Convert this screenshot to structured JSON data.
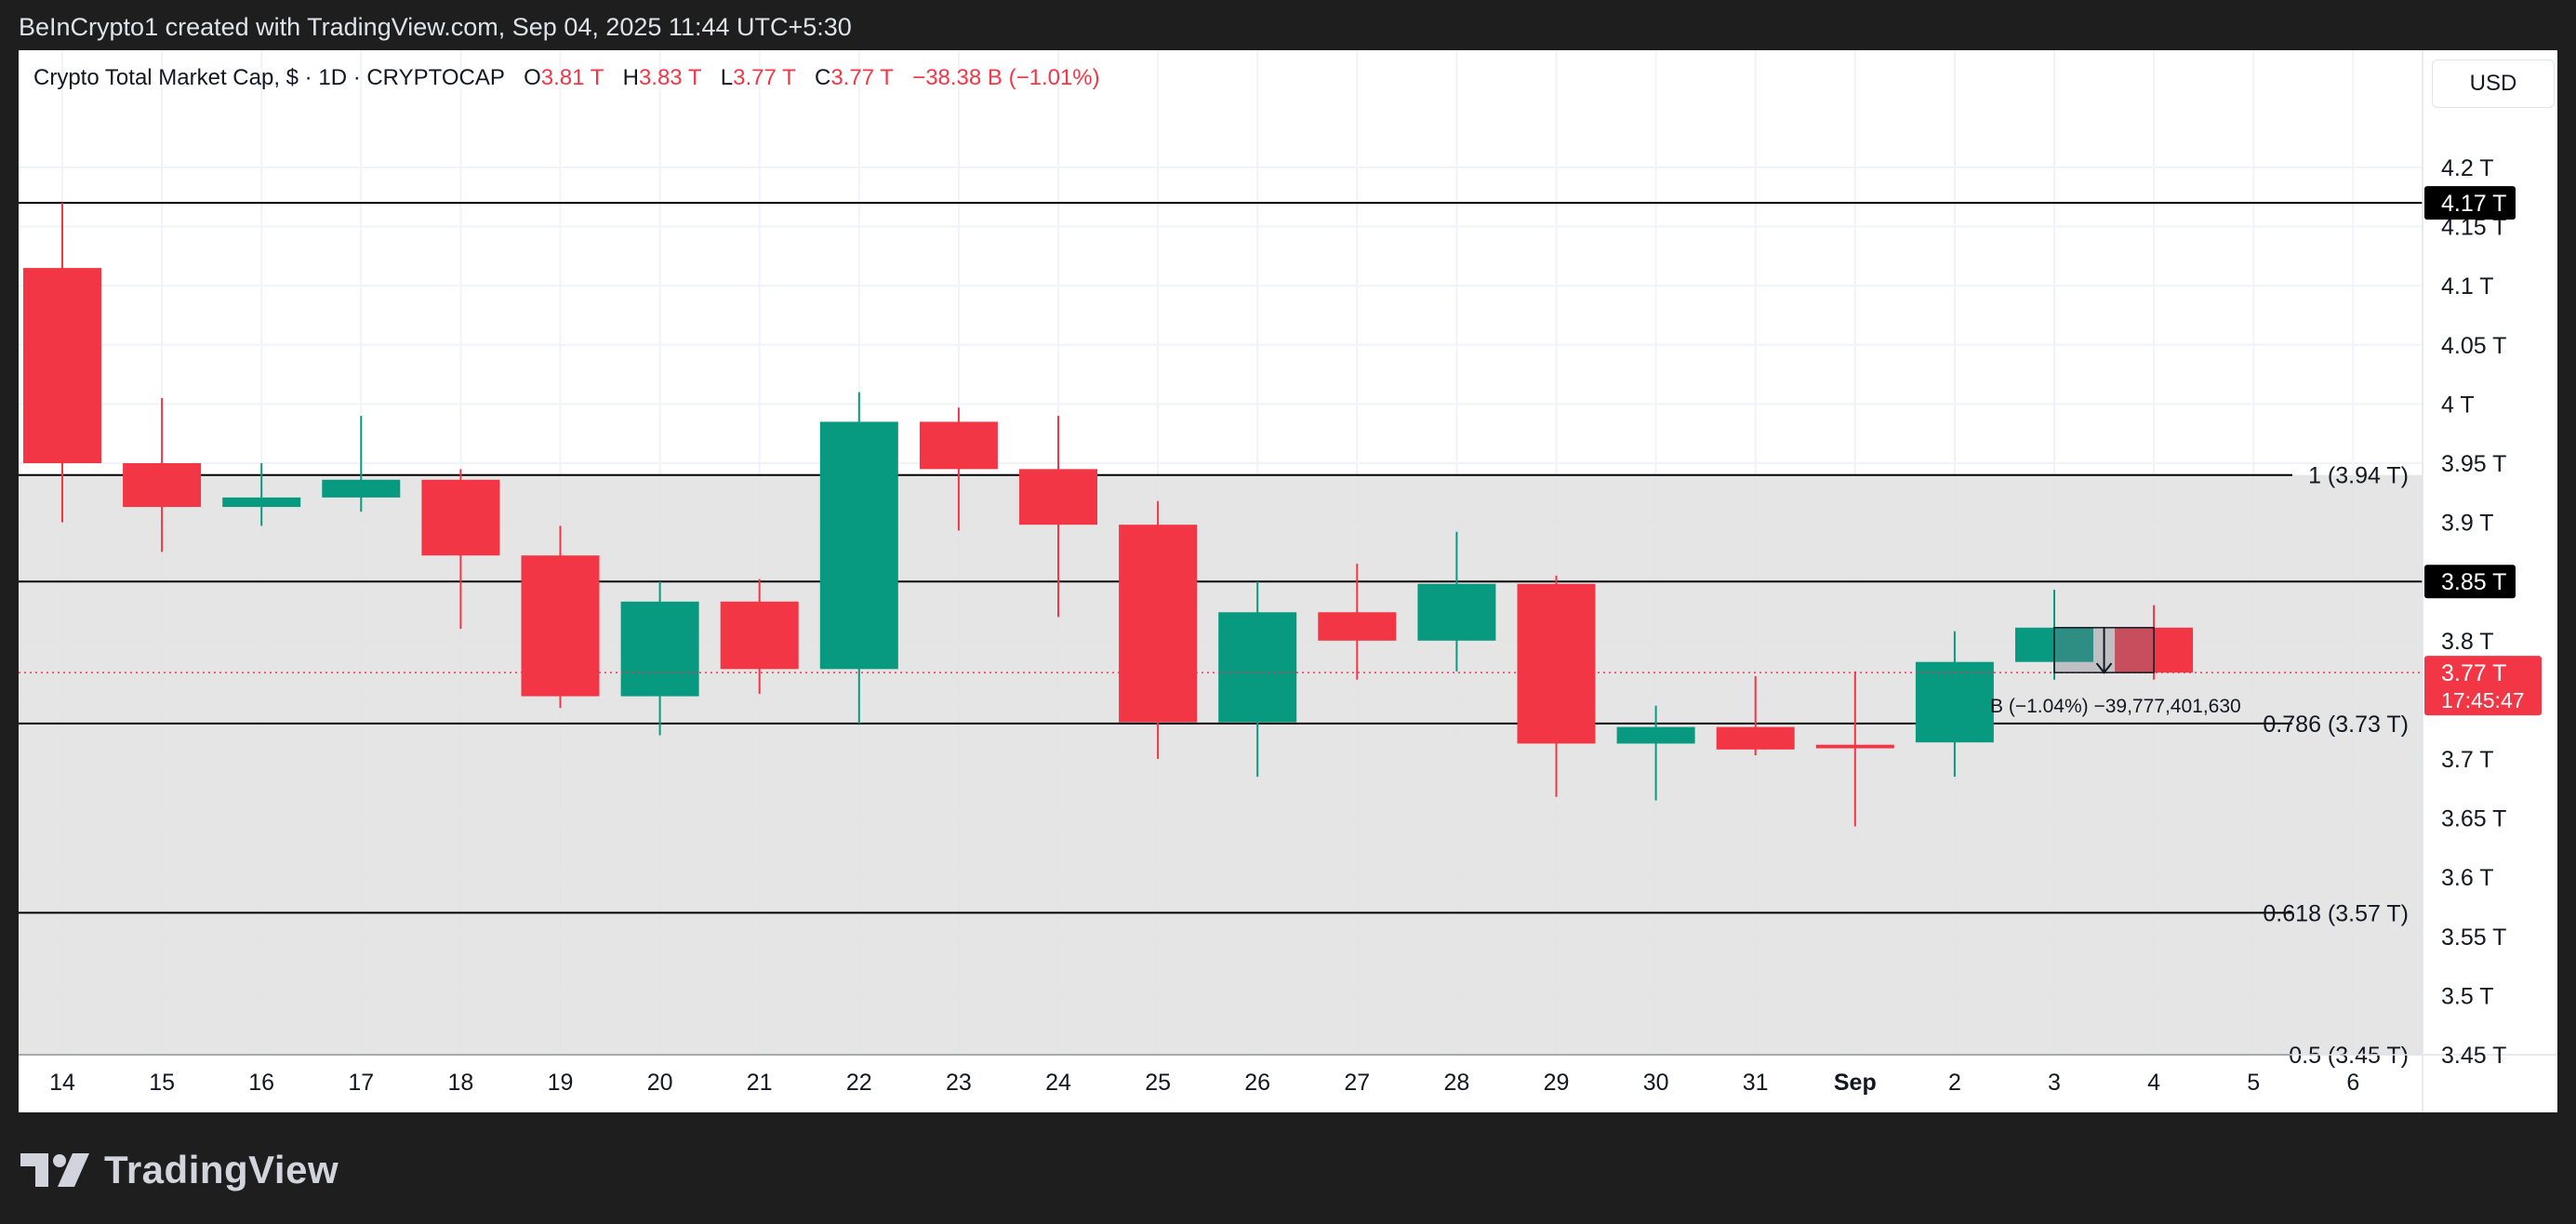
{
  "header": {
    "caption": "BeInCrypto1 created with TradingView.com, Sep 04, 2025 11:44 UTC+5:30"
  },
  "legend": {
    "symbol": "Crypto Total Market Cap, $ · 1D · CRYPTOCAP",
    "open_label": "O",
    "open": "3.81 T",
    "high_label": "H",
    "high": "3.83 T",
    "low_label": "L",
    "low": "3.77 T",
    "close_label": "C",
    "close": "3.77 T",
    "change": "−38.38 B (−1.01%)"
  },
  "currency": "USD",
  "footer": {
    "brand": "TradingView"
  },
  "colors": {
    "up": "#089981",
    "down": "#f23645",
    "fib_zone": "#e0e0e0",
    "grid": "#f0f3fa",
    "line": "#000000",
    "tag_bg": "#000000",
    "price_tag": "#f23645"
  },
  "chart_data": {
    "type": "candlestick",
    "title": "Crypto Total Market Cap, $ · 1D · CRYPTOCAP",
    "ylabel": "",
    "ylim": [
      3.45,
      4.25
    ],
    "y_ticks": [
      3.45,
      3.5,
      3.55,
      3.6,
      3.65,
      3.7,
      3.75,
      3.8,
      3.85,
      3.9,
      3.95,
      4.0,
      4.05,
      4.1,
      4.15,
      4.2
    ],
    "y_tick_labels": [
      "3.45 T",
      "3.5 T",
      "3.55 T",
      "3.6 T",
      "3.65 T",
      "3.7 T",
      "3.75 T",
      "3.8 T",
      "3.85 T",
      "3.9 T",
      "3.95 T",
      "4 T",
      "4.05 T",
      "4.1 T",
      "4.15 T",
      "4.2 T"
    ],
    "x_ticks": [
      "14",
      "15",
      "16",
      "17",
      "18",
      "19",
      "20",
      "21",
      "22",
      "23",
      "24",
      "25",
      "26",
      "27",
      "28",
      "29",
      "30",
      "31",
      "Sep",
      "2",
      "3",
      "4",
      "5",
      "6"
    ],
    "grid": true,
    "candles": [
      {
        "x": "14",
        "o": 4.115,
        "h": 4.17,
        "l": 3.9,
        "c": 3.95
      },
      {
        "x": "15",
        "o": 3.95,
        "h": 4.005,
        "l": 3.875,
        "c": 3.913
      },
      {
        "x": "16",
        "o": 3.913,
        "h": 3.95,
        "l": 3.897,
        "c": 3.921
      },
      {
        "x": "17",
        "o": 3.921,
        "h": 3.99,
        "l": 3.909,
        "c": 3.936
      },
      {
        "x": "18",
        "o": 3.936,
        "h": 3.945,
        "l": 3.81,
        "c": 3.872
      },
      {
        "x": "19",
        "o": 3.872,
        "h": 3.897,
        "l": 3.743,
        "c": 3.753
      },
      {
        "x": "20",
        "o": 3.753,
        "h": 3.85,
        "l": 3.72,
        "c": 3.833
      },
      {
        "x": "21",
        "o": 3.833,
        "h": 3.852,
        "l": 3.755,
        "c": 3.776
      },
      {
        "x": "22",
        "o": 3.776,
        "h": 4.01,
        "l": 3.73,
        "c": 3.985
      },
      {
        "x": "23",
        "o": 3.985,
        "h": 3.997,
        "l": 3.893,
        "c": 3.945
      },
      {
        "x": "24",
        "o": 3.945,
        "h": 3.99,
        "l": 3.82,
        "c": 3.898
      },
      {
        "x": "25",
        "o": 3.898,
        "h": 3.918,
        "l": 3.7,
        "c": 3.731
      },
      {
        "x": "26",
        "o": 3.731,
        "h": 3.85,
        "l": 3.685,
        "c": 3.824
      },
      {
        "x": "27",
        "o": 3.824,
        "h": 3.865,
        "l": 3.767,
        "c": 3.8
      },
      {
        "x": "28",
        "o": 3.8,
        "h": 3.892,
        "l": 3.774,
        "c": 3.848
      },
      {
        "x": "29",
        "o": 3.848,
        "h": 3.855,
        "l": 3.668,
        "c": 3.713
      },
      {
        "x": "30",
        "o": 3.713,
        "h": 3.745,
        "l": 3.665,
        "c": 3.727
      },
      {
        "x": "31",
        "o": 3.727,
        "h": 3.77,
        "l": 3.703,
        "c": 3.708
      },
      {
        "x": "Sep",
        "o": 3.712,
        "h": 3.774,
        "l": 3.643,
        "c": 3.709
      },
      {
        "x": "2",
        "o": 3.714,
        "h": 3.808,
        "l": 3.685,
        "c": 3.782
      },
      {
        "x": "3",
        "o": 3.782,
        "h": 3.843,
        "l": 3.767,
        "c": 3.811
      },
      {
        "x": "4",
        "o": 3.811,
        "h": 3.83,
        "l": 3.767,
        "c": 3.773
      }
    ],
    "horizontal_levels": [
      {
        "value": 4.17,
        "tag": "4.17 T"
      },
      {
        "value": 3.85,
        "tag": "3.85 T"
      }
    ],
    "fib_levels": [
      {
        "value": 3.94,
        "label": "1 (3.94 T)"
      },
      {
        "value": 3.73,
        "label": "0.786 (3.73 T)"
      },
      {
        "value": 3.57,
        "label": "0.618 (3.57 T)"
      },
      {
        "value": 3.45,
        "label": "0.5 (3.45 T)"
      }
    ],
    "last_price": {
      "value": 3.773,
      "label": "3.77 T",
      "countdown": "17:45:47"
    },
    "measure_label": "B (−1.04%) −39,777,401,630"
  }
}
